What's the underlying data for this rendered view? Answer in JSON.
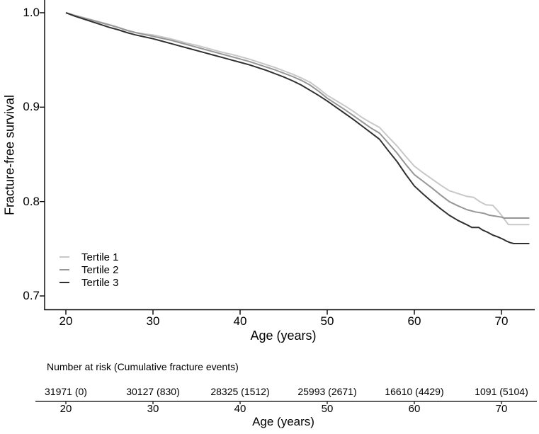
{
  "figure": {
    "background": "#ffffff",
    "axis_color": "#000000",
    "text_color": "#000000"
  },
  "chart_data": {
    "type": "line",
    "subtype": "kaplan-meier-survival",
    "title": "",
    "ylabel": "Fracture-free survival",
    "xlabel": "Age (years)",
    "xlim": [
      17.5,
      73.8
    ],
    "ylim": [
      0.686,
      1.013
    ],
    "grid": false,
    "xticks": [
      20,
      30,
      40,
      50,
      60,
      70
    ],
    "yticks": [
      {
        "value": 1.0,
        "label": "1.0"
      },
      {
        "value": 0.9,
        "label": "0.9"
      },
      {
        "value": 0.8,
        "label": "0.8"
      },
      {
        "value": 0.7,
        "label": "0.7"
      }
    ],
    "legend": {
      "position": "bottom-left"
    },
    "series": [
      {
        "name": "Tertile 1",
        "color": "#c8c8c8",
        "points": [
          [
            20,
            1.0
          ],
          [
            21,
            0.9975
          ],
          [
            22,
            0.995
          ],
          [
            23,
            0.9925
          ],
          [
            24,
            0.99
          ],
          [
            25,
            0.9875
          ],
          [
            26,
            0.9845
          ],
          [
            27,
            0.981
          ],
          [
            28,
            0.979
          ],
          [
            29,
            0.9775
          ],
          [
            30,
            0.9765
          ],
          [
            31,
            0.9745
          ],
          [
            32,
            0.9725
          ],
          [
            33,
            0.97
          ],
          [
            34,
            0.9675
          ],
          [
            35,
            0.9655
          ],
          [
            36,
            0.963
          ],
          [
            37,
            0.9605
          ],
          [
            38,
            0.958
          ],
          [
            39,
            0.956
          ],
          [
            40,
            0.9535
          ],
          [
            41,
            0.951
          ],
          [
            42,
            0.948
          ],
          [
            43,
            0.945
          ],
          [
            44,
            0.942
          ],
          [
            45,
            0.9385
          ],
          [
            46,
            0.935
          ],
          [
            47,
            0.931
          ],
          [
            48,
            0.9265
          ],
          [
            49,
            0.92
          ],
          [
            50,
            0.9125
          ],
          [
            51,
            0.907
          ],
          [
            52,
            0.9015
          ],
          [
            53,
            0.8955
          ],
          [
            54,
            0.889
          ],
          [
            55,
            0.8835
          ],
          [
            56,
            0.8785
          ],
          [
            57,
            0.8685
          ],
          [
            58,
            0.859
          ],
          [
            59,
            0.848
          ],
          [
            60,
            0.8375
          ],
          [
            61,
            0.8305
          ],
          [
            62,
            0.824
          ],
          [
            63,
            0.8175
          ],
          [
            64,
            0.8115
          ],
          [
            65,
            0.8085
          ],
          [
            66,
            0.8055
          ],
          [
            66.8,
            0.8045
          ],
          [
            67.5,
            0.8
          ],
          [
            68.2,
            0.7965
          ],
          [
            69,
            0.796
          ],
          [
            69.5,
            0.791
          ],
          [
            70,
            0.7855
          ],
          [
            70.4,
            0.7805
          ],
          [
            70.8,
            0.7755
          ],
          [
            73.2,
            0.7755
          ]
        ]
      },
      {
        "name": "Tertile 2",
        "color": "#969696",
        "points": [
          [
            20,
            1.0
          ],
          [
            21,
            0.997
          ],
          [
            22,
            0.9945
          ],
          [
            23,
            0.992
          ],
          [
            24,
            0.9895
          ],
          [
            25,
            0.987
          ],
          [
            26,
            0.9845
          ],
          [
            27,
            0.9815
          ],
          [
            28,
            0.979
          ],
          [
            29,
            0.977
          ],
          [
            30,
            0.975
          ],
          [
            31,
            0.973
          ],
          [
            32,
            0.971
          ],
          [
            33,
            0.9685
          ],
          [
            34,
            0.966
          ],
          [
            35,
            0.9635
          ],
          [
            36,
            0.961
          ],
          [
            37,
            0.9585
          ],
          [
            38,
            0.956
          ],
          [
            39,
            0.9535
          ],
          [
            40,
            0.951
          ],
          [
            41,
            0.9485
          ],
          [
            42,
            0.9455
          ],
          [
            43,
            0.9425
          ],
          [
            44,
            0.9395
          ],
          [
            45,
            0.936
          ],
          [
            46,
            0.9325
          ],
          [
            47,
            0.9285
          ],
          [
            48,
            0.9235
          ],
          [
            49,
            0.917
          ],
          [
            50,
            0.9095
          ],
          [
            51,
            0.9035
          ],
          [
            52,
            0.8975
          ],
          [
            53,
            0.891
          ],
          [
            54,
            0.8845
          ],
          [
            55,
            0.878
          ],
          [
            56,
            0.8725
          ],
          [
            57,
            0.862
          ],
          [
            58,
            0.8515
          ],
          [
            59,
            0.8395
          ],
          [
            60,
            0.8285
          ],
          [
            61,
            0.8215
          ],
          [
            62,
            0.8145
          ],
          [
            63,
            0.807
          ],
          [
            64,
            0.8
          ],
          [
            65,
            0.7955
          ],
          [
            66,
            0.7915
          ],
          [
            67,
            0.789
          ],
          [
            68,
            0.7875
          ],
          [
            68.6,
            0.7855
          ],
          [
            69.3,
            0.7845
          ],
          [
            70,
            0.7835
          ],
          [
            70.3,
            0.7825
          ],
          [
            73.2,
            0.7825
          ]
        ]
      },
      {
        "name": "Tertile 3",
        "color": "#303030",
        "points": [
          [
            20,
            1.0
          ],
          [
            21,
            0.9965
          ],
          [
            22,
            0.9935
          ],
          [
            23,
            0.9905
          ],
          [
            24,
            0.9875
          ],
          [
            25,
            0.9845
          ],
          [
            26,
            0.982
          ],
          [
            27,
            0.979
          ],
          [
            28,
            0.9765
          ],
          [
            29,
            0.9745
          ],
          [
            30,
            0.9725
          ],
          [
            31,
            0.97
          ],
          [
            32,
            0.9675
          ],
          [
            33,
            0.965
          ],
          [
            34,
            0.9625
          ],
          [
            35,
            0.96
          ],
          [
            36,
            0.9575
          ],
          [
            37,
            0.955
          ],
          [
            38,
            0.9525
          ],
          [
            39,
            0.95
          ],
          [
            40,
            0.9475
          ],
          [
            41,
            0.945
          ],
          [
            42,
            0.942
          ],
          [
            43,
            0.939
          ],
          [
            44,
            0.9355
          ],
          [
            45,
            0.932
          ],
          [
            46,
            0.928
          ],
          [
            47,
            0.9235
          ],
          [
            48,
            0.918
          ],
          [
            49,
            0.9125
          ],
          [
            50,
            0.9065
          ],
          [
            51,
            0.9
          ],
          [
            52,
            0.8935
          ],
          [
            53,
            0.887
          ],
          [
            54,
            0.88
          ],
          [
            55,
            0.873
          ],
          [
            56,
            0.866
          ],
          [
            57,
            0.854
          ],
          [
            58,
            0.8425
          ],
          [
            59,
            0.829
          ],
          [
            60,
            0.8165
          ],
          [
            61,
            0.808
          ],
          [
            62,
            0.8
          ],
          [
            63,
            0.7925
          ],
          [
            64,
            0.7855
          ],
          [
            65,
            0.78
          ],
          [
            66,
            0.7755
          ],
          [
            66.6,
            0.7725
          ],
          [
            67.4,
            0.7725
          ],
          [
            67.8,
            0.77
          ],
          [
            68.4,
            0.7675
          ],
          [
            69,
            0.7645
          ],
          [
            69.6,
            0.7625
          ],
          [
            70.2,
            0.76
          ],
          [
            70.6,
            0.758
          ],
          [
            71,
            0.7565
          ],
          [
            71.4,
            0.7555
          ],
          [
            73.2,
            0.7555
          ]
        ]
      }
    ]
  },
  "risk_table": {
    "heading": "Number at risk (Cumulative fracture events)",
    "xlabel": "Age (years)",
    "ages": [
      20,
      30,
      40,
      50,
      60,
      70
    ],
    "values": [
      "31971 (0)",
      "30127 (830)",
      "28325 (1512)",
      "25993 (2671)",
      "16610 (4429)",
      "1091 (5104)"
    ]
  }
}
